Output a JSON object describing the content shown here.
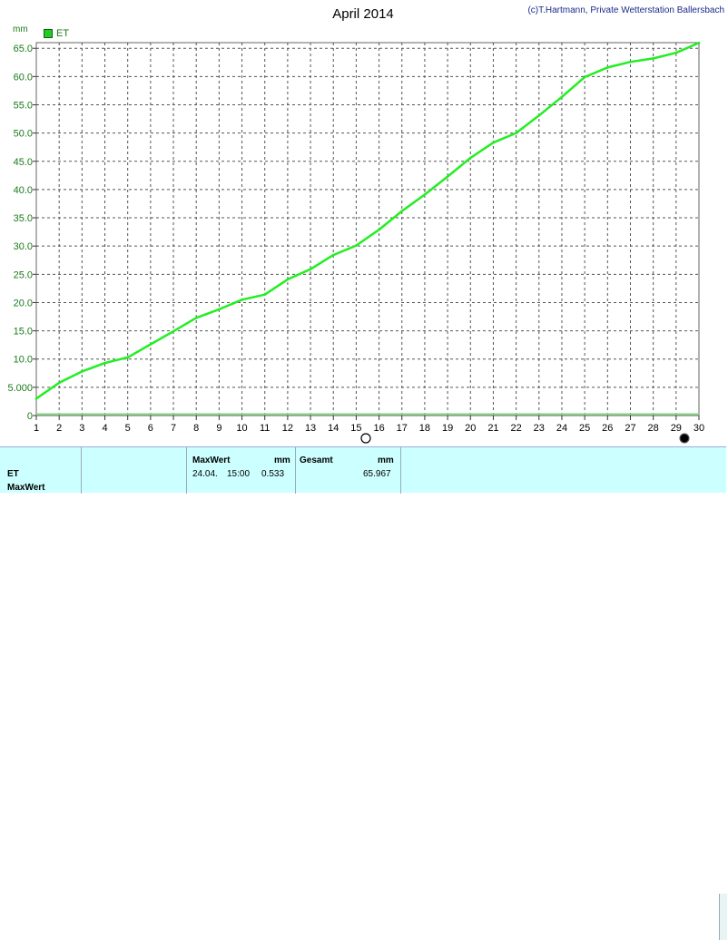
{
  "title": "April 2014",
  "credit": "(c)T.Hartmann, Private Wetterstation Ballersbach",
  "unit_label": "mm",
  "legend": {
    "label": "ET",
    "color": "#22cc22"
  },
  "chart_data": {
    "type": "line",
    "ylabel": "mm",
    "ylim": [
      0,
      66
    ],
    "xlim": [
      1,
      30
    ],
    "y_ticks": [
      "0",
      "5.000",
      "10.0",
      "15.0",
      "20.0",
      "25.0",
      "30.0",
      "35.0",
      "40.0",
      "45.0",
      "50.0",
      "55.0",
      "60.0",
      "65.0"
    ],
    "y_tick_values": [
      0,
      5,
      10,
      15,
      20,
      25,
      30,
      35,
      40,
      45,
      50,
      55,
      60,
      65
    ],
    "x_ticks": [
      "1",
      "2",
      "3",
      "4",
      "5",
      "6",
      "7",
      "8",
      "9",
      "10",
      "11",
      "12",
      "13",
      "14",
      "15",
      "16",
      "17",
      "18",
      "19",
      "20",
      "21",
      "22",
      "23",
      "24",
      "25",
      "26",
      "27",
      "28",
      "29",
      "30"
    ],
    "grid": true,
    "legend_position": "top-left",
    "series": [
      {
        "name": "ET",
        "color": "#22ee22",
        "x": [
          1,
          2,
          3,
          4,
          5,
          6,
          7,
          8,
          9,
          10,
          11,
          12,
          13,
          14,
          15,
          16,
          17,
          18,
          19,
          20,
          21,
          22,
          23,
          24,
          25,
          26,
          27,
          28,
          29,
          30
        ],
        "values": [
          3.0,
          5.8,
          7.8,
          9.3,
          10.3,
          12.6,
          14.9,
          17.3,
          18.8,
          20.5,
          21.4,
          24.1,
          25.9,
          28.4,
          30.1,
          32.9,
          36.2,
          39.1,
          42.3,
          45.6,
          48.3,
          50.0,
          53.1,
          56.4,
          59.9,
          61.6,
          62.6,
          63.2,
          64.2,
          65.967
        ]
      },
      {
        "name": "",
        "color": "#88dd88",
        "x": [
          1,
          30
        ],
        "values": [
          0.25,
          0.25
        ]
      }
    ]
  },
  "table": {
    "row_label_1": "ET",
    "row_label_2": "MaxWert",
    "maxwert_header": "MaxWert",
    "maxwert_unit": "mm",
    "maxwert_date": "24.04.",
    "maxwert_time": "15:00",
    "maxwert_value": "0.533",
    "gesamt_header": "Gesamt",
    "gesamt_unit": "mm",
    "gesamt_value": "65.967"
  }
}
